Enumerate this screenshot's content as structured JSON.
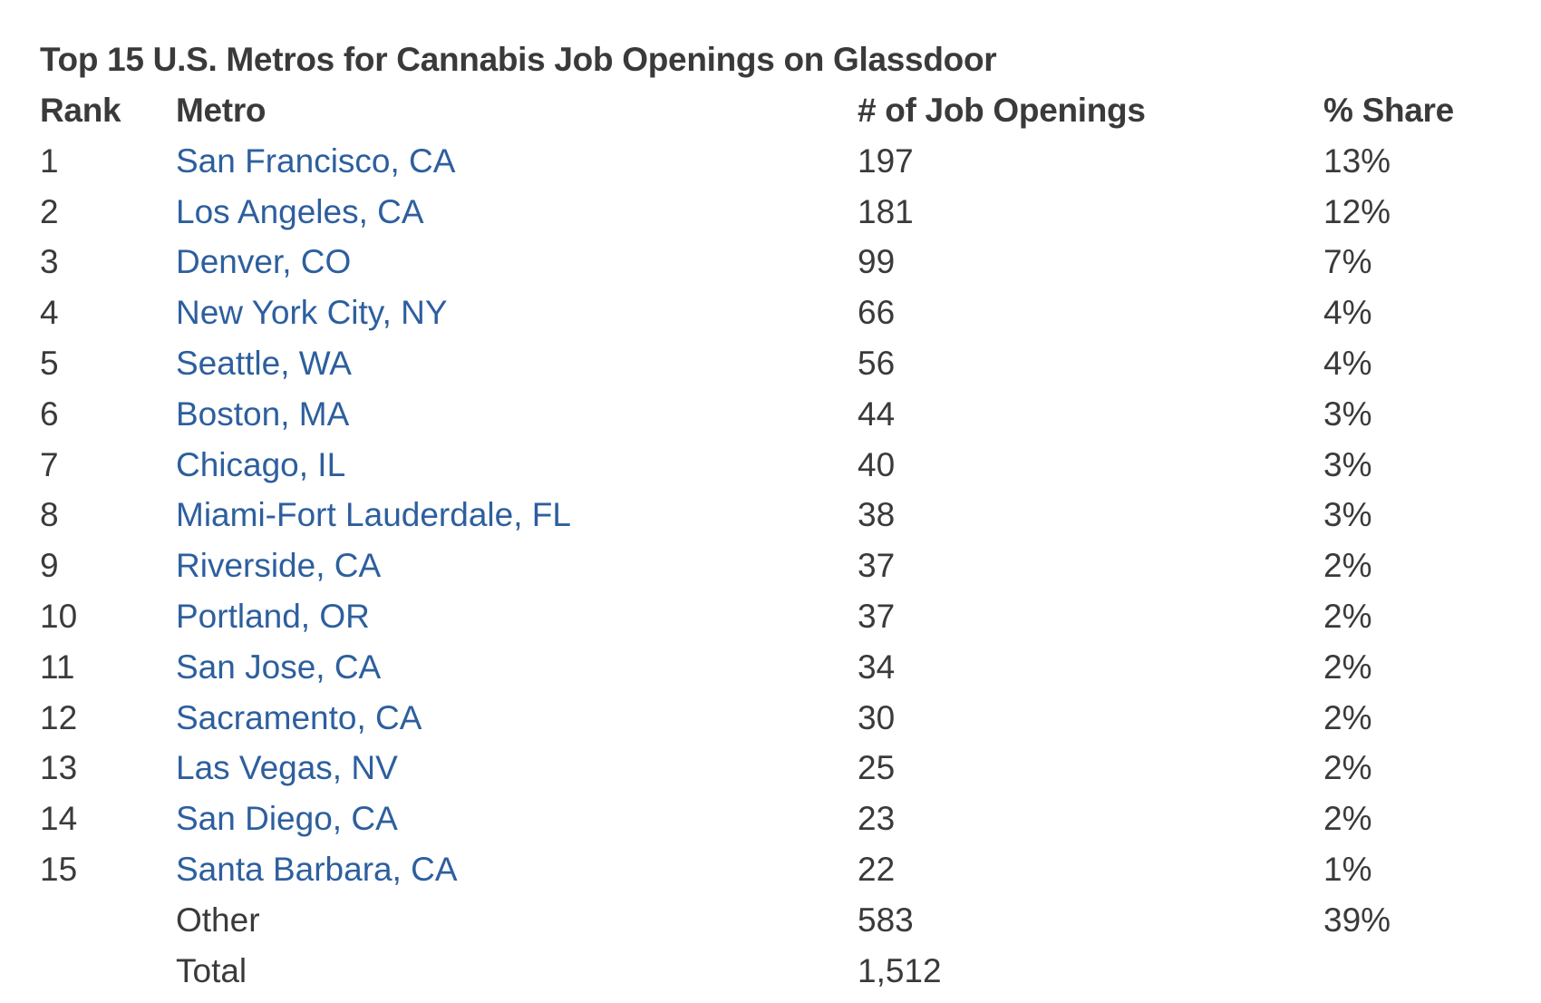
{
  "title": "Top 15 U.S. Metros for Cannabis Job Openings on Glassdoor",
  "headers": {
    "rank": "Rank",
    "metro": "Metro",
    "jobs": "# of Job Openings",
    "share": "% Share"
  },
  "rows": [
    {
      "rank": "1",
      "metro": "San Francisco, CA",
      "jobs": "197",
      "share": "13%"
    },
    {
      "rank": "2",
      "metro": "Los Angeles, CA",
      "jobs": "181",
      "share": "12%"
    },
    {
      "rank": "3",
      "metro": "Denver, CO",
      "jobs": "99",
      "share": "7%"
    },
    {
      "rank": "4",
      "metro": "New York City, NY",
      "jobs": "66",
      "share": "4%"
    },
    {
      "rank": "5",
      "metro": "Seattle, WA",
      "jobs": "56",
      "share": "4%"
    },
    {
      "rank": "6",
      "metro": "Boston, MA",
      "jobs": "44",
      "share": "3%"
    },
    {
      "rank": "7",
      "metro": "Chicago, IL",
      "jobs": "40",
      "share": "3%"
    },
    {
      "rank": "8",
      "metro": "Miami-Fort Lauderdale, FL",
      "jobs": "38",
      "share": "3%"
    },
    {
      "rank": "9",
      "metro": "Riverside, CA",
      "jobs": "37",
      "share": "2%"
    },
    {
      "rank": "10",
      "metro": "Portland, OR",
      "jobs": "37",
      "share": "2%"
    },
    {
      "rank": "11",
      "metro": "San Jose, CA",
      "jobs": "34",
      "share": "2%"
    },
    {
      "rank": "12",
      "metro": "Sacramento, CA",
      "jobs": "30",
      "share": "2%"
    },
    {
      "rank": "13",
      "metro": "Las Vegas, NV",
      "jobs": "25",
      "share": "2%"
    },
    {
      "rank": "14",
      "metro": "San Diego, CA",
      "jobs": "23",
      "share": "2%"
    },
    {
      "rank": "15",
      "metro": "Santa Barbara, CA",
      "jobs": "22",
      "share": "1%"
    }
  ],
  "other": {
    "label": "Other",
    "jobs": "583",
    "share": "39%"
  },
  "total": {
    "label": "Total",
    "jobs": "1,512"
  },
  "colors": {
    "text": "#3a3a3a",
    "link": "#2d5f9e",
    "background": "#ffffff"
  }
}
